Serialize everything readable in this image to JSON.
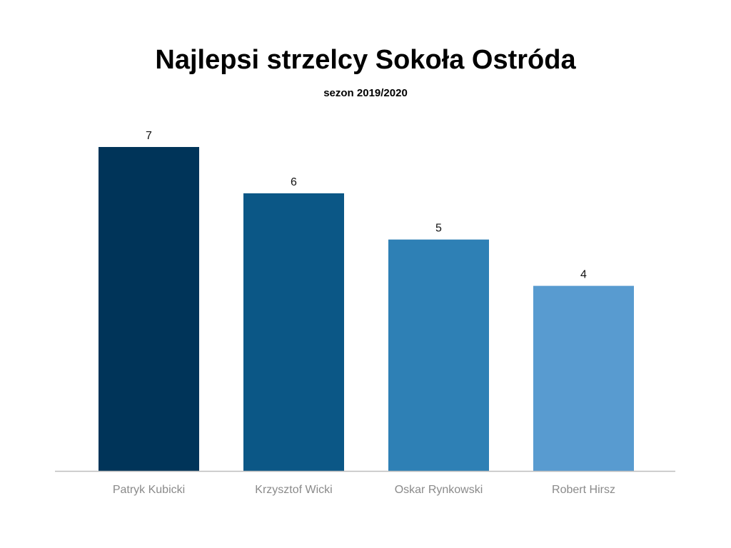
{
  "chart_data": {
    "type": "bar",
    "title": "Najlepsi strzelcy Sokoła Ostróda",
    "subtitle": "sezon 2019/2020",
    "categories": [
      "Patryk Kubicki",
      "Krzysztof Wicki",
      "Oskar Rynkowski",
      "Robert Hirsz"
    ],
    "values": [
      7,
      6,
      5,
      4
    ],
    "bar_colors": [
      "#003459",
      "#0b5786",
      "#2e80b5",
      "#589bd0"
    ],
    "axis_color": "#bdbdbd",
    "ylim": [
      0,
      7
    ],
    "grid": false,
    "legend": "none",
    "data_labels": true
  }
}
